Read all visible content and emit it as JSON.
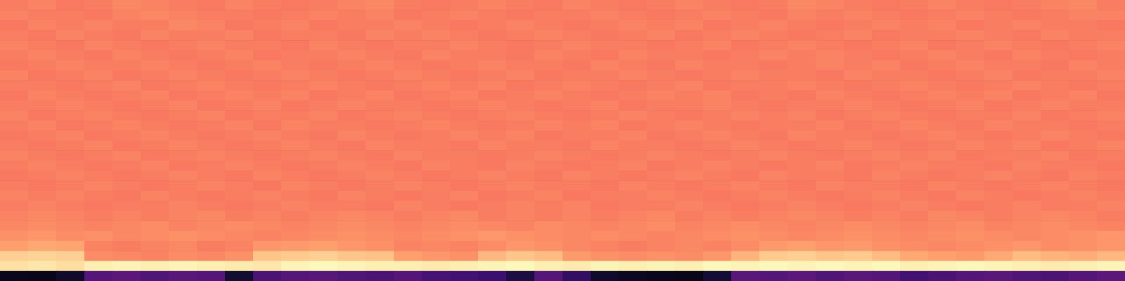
{
  "chart_data": {
    "type": "heatmap",
    "tick_labels": false,
    "zlim": [
      0,
      100
    ],
    "cells": [
      [
        73,
        74,
        72,
        73,
        75,
        74,
        73,
        72,
        74,
        73,
        72,
        73,
        74,
        75,
        73,
        72,
        73,
        74,
        73,
        72,
        74,
        73,
        72,
        73,
        74,
        73,
        72,
        73,
        75,
        74,
        73,
        72,
        73,
        74,
        73,
        72,
        73,
        74,
        75,
        73
      ],
      [
        74,
        73,
        73,
        72,
        74,
        75,
        74,
        73,
        73,
        72,
        73,
        74,
        73,
        74,
        72,
        73,
        74,
        73,
        72,
        73,
        73,
        74,
        73,
        72,
        73,
        74,
        73,
        72,
        74,
        73,
        74,
        73,
        72,
        73,
        74,
        73,
        72,
        73,
        74,
        74
      ],
      [
        72,
        74,
        73,
        74,
        73,
        73,
        75,
        74,
        72,
        73,
        74,
        72,
        73,
        73,
        74,
        73,
        72,
        73,
        74,
        73,
        72,
        73,
        74,
        73,
        74,
        72,
        73,
        74,
        73,
        72,
        73,
        74,
        73,
        74,
        72,
        73,
        74,
        73,
        73,
        72
      ],
      [
        73,
        72,
        74,
        73,
        72,
        74,
        73,
        73,
        74,
        72,
        73,
        73,
        72,
        74,
        73,
        74,
        73,
        72,
        73,
        74,
        73,
        72,
        73,
        74,
        72,
        73,
        74,
        73,
        72,
        73,
        74,
        72,
        73,
        73,
        74,
        73,
        72,
        74,
        73,
        73
      ],
      [
        74,
        73,
        72,
        74,
        73,
        72,
        73,
        74,
        73,
        73,
        72,
        74,
        73,
        72,
        73,
        73,
        74,
        73,
        72,
        73,
        74,
        73,
        73,
        72,
        73,
        74,
        72,
        73,
        74,
        73,
        72,
        73,
        74,
        72,
        73,
        74,
        73,
        72,
        73,
        74
      ],
      [
        73,
        74,
        73,
        72,
        74,
        73,
        72,
        73,
        74,
        72,
        73,
        73,
        74,
        73,
        72,
        74,
        73,
        73,
        72,
        74,
        73,
        72,
        74,
        73,
        73,
        72,
        73,
        74,
        73,
        74,
        73,
        72,
        73,
        74,
        73,
        72,
        74,
        73,
        72,
        73
      ],
      [
        72,
        73,
        74,
        73,
        73,
        74,
        73,
        72,
        73,
        74,
        73,
        72,
        73,
        74,
        73,
        72,
        73,
        74,
        73,
        73,
        72,
        74,
        73,
        72,
        74,
        73,
        73,
        72,
        73,
        74,
        73,
        74,
        72,
        73,
        74,
        73,
        73,
        72,
        74,
        73
      ],
      [
        74,
        72,
        73,
        74,
        72,
        73,
        74,
        73,
        72,
        73,
        74,
        73,
        72,
        73,
        74,
        73,
        72,
        73,
        74,
        72,
        73,
        73,
        74,
        73,
        72,
        73,
        74,
        73,
        73,
        72,
        74,
        73,
        73,
        72,
        73,
        74,
        72,
        73,
        73,
        74
      ],
      [
        73,
        73,
        72,
        73,
        74,
        72,
        73,
        74,
        73,
        72,
        73,
        74,
        73,
        72,
        73,
        74,
        73,
        74,
        72,
        73,
        74,
        73,
        72,
        73,
        74,
        72,
        73,
        73,
        74,
        73,
        72,
        73,
        74,
        73,
        72,
        73,
        74,
        73,
        72,
        73
      ],
      [
        72,
        74,
        73,
        72,
        73,
        74,
        72,
        73,
        74,
        73,
        74,
        72,
        73,
        74,
        72,
        73,
        74,
        72,
        73,
        74,
        73,
        72,
        73,
        74,
        73,
        74,
        72,
        73,
        72,
        74,
        73,
        72,
        73,
        74,
        73,
        74,
        72,
        73,
        74,
        72
      ],
      [
        73,
        73,
        74,
        73,
        72,
        73,
        74,
        72,
        73,
        74,
        72,
        73,
        74,
        73,
        73,
        72,
        73,
        74,
        73,
        72,
        73,
        74,
        72,
        73,
        73,
        74,
        73,
        72,
        73,
        73,
        74,
        73,
        72,
        73,
        74,
        72,
        73,
        74,
        73,
        73
      ],
      [
        74,
        72,
        73,
        74,
        73,
        72,
        73,
        74,
        72,
        73,
        73,
        74,
        72,
        73,
        74,
        73,
        72,
        73,
        74,
        73,
        72,
        73,
        74,
        73,
        72,
        73,
        74,
        73,
        74,
        72,
        73,
        74,
        73,
        72,
        73,
        73,
        74,
        72,
        73,
        74
      ],
      [
        73,
        74,
        72,
        73,
        74,
        73,
        72,
        73,
        74,
        72,
        74,
        73,
        73,
        72,
        73,
        74,
        73,
        72,
        73,
        74,
        73,
        74,
        72,
        73,
        74,
        73,
        72,
        73,
        73,
        74,
        72,
        73,
        74,
        73,
        72,
        74,
        73,
        73,
        72,
        73
      ],
      [
        72,
        73,
        74,
        72,
        73,
        74,
        73,
        72,
        73,
        74,
        73,
        72,
        74,
        73,
        72,
        73,
        74,
        73,
        74,
        72,
        73,
        73,
        74,
        72,
        73,
        74,
        73,
        72,
        74,
        73,
        73,
        72,
        73,
        74,
        73,
        72,
        73,
        74,
        73,
        72
      ],
      [
        73,
        72,
        73,
        74,
        72,
        73,
        74,
        73,
        72,
        73,
        74,
        73,
        72,
        74,
        73,
        73,
        72,
        74,
        73,
        73,
        72,
        74,
        73,
        73,
        72,
        73,
        74,
        73,
        72,
        73,
        74,
        73,
        72,
        73,
        74,
        73,
        74,
        72,
        73,
        74
      ],
      [
        74,
        73,
        72,
        73,
        74,
        72,
        73,
        74,
        73,
        72,
        73,
        74,
        73,
        72,
        74,
        73,
        73,
        72,
        73,
        74,
        73,
        72,
        73,
        74,
        73,
        72,
        73,
        74,
        73,
        72,
        73,
        74,
        73,
        74,
        72,
        73,
        73,
        74,
        72,
        73
      ],
      [
        73,
        74,
        73,
        72,
        73,
        74,
        72,
        73,
        74,
        73,
        72,
        73,
        74,
        73,
        72,
        74,
        73,
        72,
        74,
        73,
        72,
        73,
        74,
        72,
        73,
        74,
        73,
        72,
        73,
        74,
        72,
        73,
        74,
        73,
        73,
        72,
        74,
        73,
        73,
        72
      ],
      [
        72,
        73,
        74,
        73,
        72,
        73,
        74,
        73,
        72,
        74,
        73,
        72,
        73,
        74,
        73,
        72,
        73,
        74,
        73,
        72,
        74,
        73,
        72,
        73,
        74,
        73,
        72,
        74,
        73,
        73,
        72,
        74,
        73,
        72,
        73,
        74,
        73,
        72,
        74,
        73
      ],
      [
        73,
        72,
        73,
        74,
        73,
        72,
        73,
        74,
        73,
        72,
        74,
        73,
        72,
        73,
        74,
        73,
        72,
        73,
        74,
        73,
        73,
        72,
        74,
        73,
        72,
        73,
        74,
        73,
        72,
        74,
        73,
        73,
        72,
        74,
        73,
        72,
        73,
        74,
        73,
        72
      ],
      [
        74,
        73,
        74,
        73,
        72,
        74,
        73,
        72,
        73,
        74,
        73,
        72,
        74,
        73,
        72,
        73,
        74,
        72,
        73,
        74,
        72,
        73,
        73,
        74,
        73,
        72,
        73,
        74,
        73,
        72,
        73,
        74,
        73,
        72,
        74,
        73,
        72,
        73,
        74,
        73
      ],
      [
        73,
        74,
        73,
        72,
        73,
        73,
        74,
        73,
        72,
        73,
        74,
        73,
        73,
        72,
        74,
        73,
        72,
        73,
        74,
        73,
        74,
        72,
        73,
        73,
        74,
        73,
        72,
        73,
        74,
        73,
        72,
        73,
        74,
        73,
        72,
        73,
        74,
        73,
        73,
        74
      ],
      [
        74,
        75,
        74,
        73,
        74,
        73,
        74,
        75,
        73,
        74,
        73,
        74,
        75,
        74,
        73,
        74,
        75,
        73,
        74,
        73,
        74,
        73,
        74,
        75,
        73,
        74,
        73,
        74,
        75,
        74,
        73,
        74,
        73,
        75,
        74,
        73,
        74,
        75,
        74,
        73
      ],
      [
        75,
        76,
        75,
        74,
        75,
        76,
        74,
        75,
        76,
        75,
        74,
        75,
        76,
        75,
        74,
        75,
        76,
        75,
        74,
        76,
        75,
        74,
        75,
        76,
        74,
        75,
        76,
        75,
        74,
        75,
        76,
        75,
        74,
        75,
        76,
        74,
        75,
        76,
        75,
        74
      ],
      [
        77,
        78,
        76,
        77,
        75,
        76,
        77,
        76,
        75,
        74,
        75,
        76,
        77,
        76,
        75,
        76,
        77,
        78,
        77,
        76,
        75,
        76,
        75,
        74,
        75,
        76,
        77,
        76,
        75,
        76,
        77,
        76,
        75,
        76,
        77,
        76,
        75,
        76,
        77,
        78
      ],
      [
        80,
        82,
        81,
        74,
        73,
        74,
        75,
        73,
        74,
        78,
        79,
        80,
        78,
        77,
        74,
        75,
        74,
        76,
        78,
        77,
        75,
        74,
        73,
        74,
        75,
        74,
        76,
        79,
        80,
        78,
        79,
        77,
        76,
        75,
        76,
        77,
        78,
        76,
        77,
        78
      ],
      [
        90,
        91,
        90,
        76,
        75,
        74,
        76,
        75,
        77,
        88,
        89,
        90,
        88,
        87,
        80,
        78,
        77,
        85,
        88,
        86,
        79,
        77,
        76,
        77,
        76,
        78,
        84,
        89,
        90,
        88,
        89,
        86,
        82,
        80,
        79,
        82,
        86,
        84,
        83,
        85
      ],
      [
        94,
        95,
        93,
        97,
        98,
        97,
        98,
        97,
        96,
        95,
        98,
        99,
        98,
        97,
        97,
        96,
        97,
        98,
        99,
        97,
        96,
        98,
        97,
        98,
        97,
        99,
        98,
        99,
        98,
        99,
        98,
        99,
        97,
        98,
        99,
        98,
        97,
        96,
        97,
        98
      ],
      [
        5,
        4,
        8,
        26,
        28,
        25,
        27,
        26,
        9,
        24,
        26,
        27,
        25,
        24,
        26,
        23,
        22,
        20,
        12,
        26,
        18,
        8,
        6,
        5,
        4,
        10,
        27,
        26,
        28,
        25,
        27,
        26,
        22,
        24,
        26,
        27,
        25,
        24,
        26,
        28
      ]
    ]
  }
}
